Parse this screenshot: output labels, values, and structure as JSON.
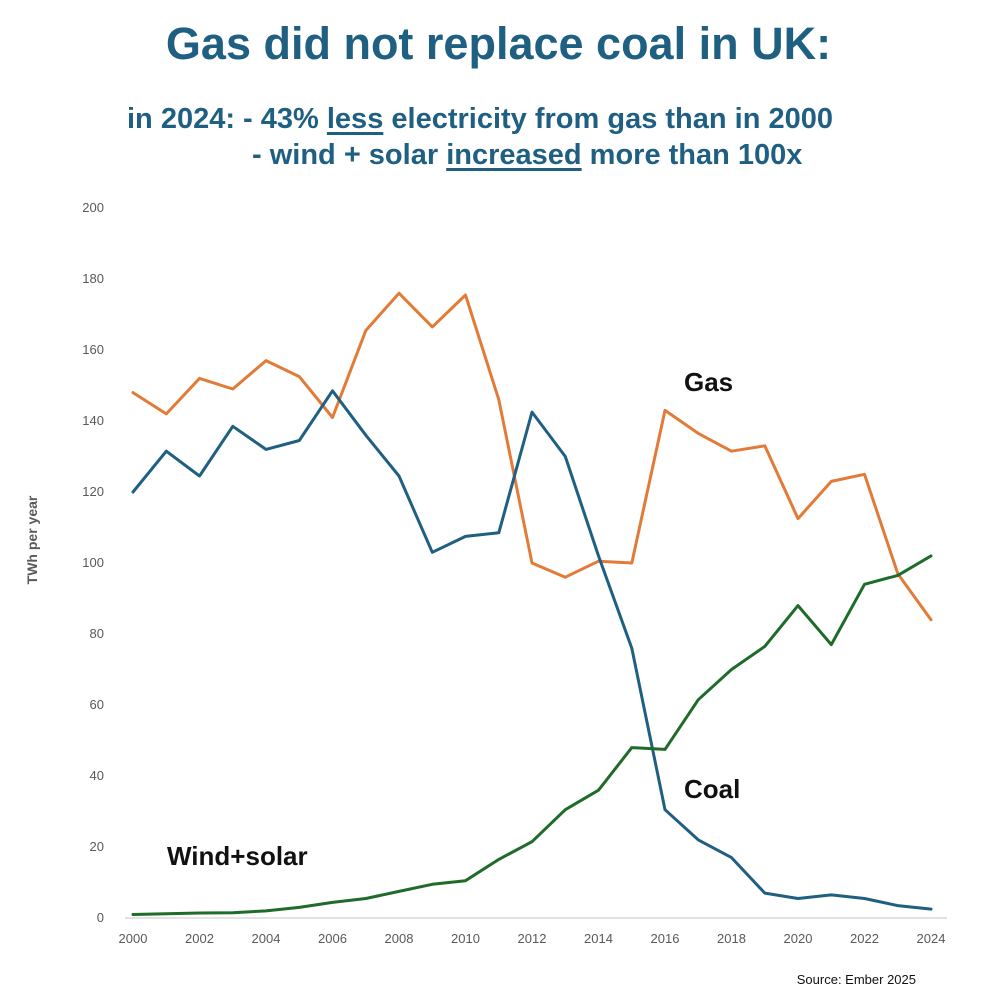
{
  "chart_data": {
    "type": "line",
    "title": "Gas did not replace coal in UK:",
    "subtitle_line1": {
      "prefix": "in 2024: - 43% ",
      "emph": "less",
      "suffix": " electricity from gas than in 2000"
    },
    "subtitle_line2": {
      "prefix": "- wind + solar ",
      "emph": "increased",
      "suffix": " more than 100x"
    },
    "ylabel": "TWh per year",
    "xlabel": "",
    "ylim": [
      0,
      200
    ],
    "yticks": [
      "0",
      "20",
      "40",
      "60",
      "80",
      "100",
      "120",
      "140",
      "160",
      "180",
      "200"
    ],
    "xlim": [
      2000,
      2024
    ],
    "xticks": [
      "2000",
      "2002",
      "2004",
      "2006",
      "2008",
      "2010",
      "2012",
      "2014",
      "2016",
      "2018",
      "2020",
      "2022",
      "2024"
    ],
    "x": [
      2000,
      2001,
      2002,
      2003,
      2004,
      2005,
      2006,
      2007,
      2008,
      2009,
      2010,
      2011,
      2012,
      2013,
      2014,
      2015,
      2016,
      2017,
      2018,
      2019,
      2020,
      2021,
      2022,
      2023,
      2024
    ],
    "series": [
      {
        "name": "Gas",
        "color": "#e27b38",
        "values": [
          148.0,
          142.0,
          152.0,
          149.0,
          157.0,
          152.5,
          141.0,
          165.5,
          176.0,
          166.5,
          175.5,
          146.0,
          100.0,
          96.0,
          100.5,
          100.0,
          143.0,
          136.5,
          131.5,
          133.0,
          112.5,
          123.0,
          125.0,
          97.0,
          84.0
        ]
      },
      {
        "name": "Coal",
        "color": "#1f5f82",
        "values": [
          120.0,
          131.5,
          124.5,
          138.5,
          132.0,
          134.5,
          148.5,
          136.0,
          124.5,
          103.0,
          107.5,
          108.5,
          142.5,
          130.0,
          102.0,
          76.0,
          30.5,
          22.0,
          17.0,
          7.0,
          5.5,
          6.5,
          5.5,
          3.5,
          2.5
        ]
      },
      {
        "name": "Wind+solar",
        "color": "#1e6b2a",
        "values": [
          1.0,
          1.2,
          1.4,
          1.5,
          2.0,
          3.0,
          4.4,
          5.5,
          7.5,
          9.5,
          10.5,
          16.5,
          21.5,
          30.5,
          36.0,
          48.0,
          47.5,
          61.5,
          70.0,
          76.5,
          88.0,
          77.0,
          94.0,
          96.5,
          102.0
        ]
      }
    ],
    "annotations": [
      "Gas",
      "Coal",
      "Wind+solar"
    ],
    "source": "Source: Ember 2025",
    "grid": false,
    "legend": "none"
  }
}
